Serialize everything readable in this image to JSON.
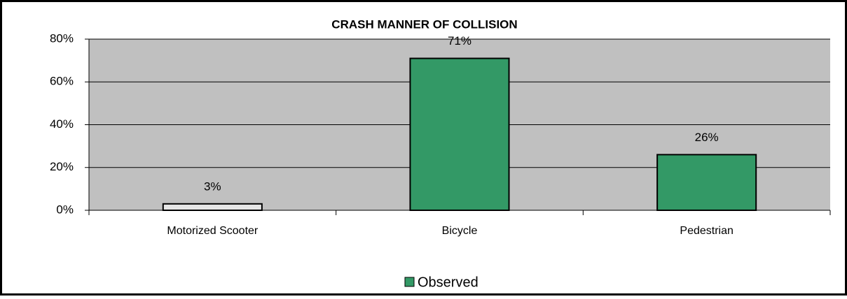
{
  "chart_data": {
    "type": "bar",
    "title": "CRASH MANNER OF COLLISION",
    "categories": [
      "Motorized Scooter",
      "Bicycle",
      "Pedestrian"
    ],
    "series": [
      {
        "name": "Observed",
        "color": "#339966",
        "values": [
          3,
          71,
          26
        ],
        "value_labels": [
          "3%",
          "71%",
          "26%"
        ],
        "colors": [
          "#e6e6e6",
          "#339966",
          "#339966"
        ]
      }
    ],
    "ylim": [
      0,
      80
    ],
    "yticks": [
      {
        "value": 0,
        "label": "0%"
      },
      {
        "value": 20,
        "label": "20%"
      },
      {
        "value": 40,
        "label": "40%"
      },
      {
        "value": 60,
        "label": "60%"
      },
      {
        "value": 80,
        "label": "80%"
      }
    ],
    "grid": true,
    "legend": "bottom"
  }
}
